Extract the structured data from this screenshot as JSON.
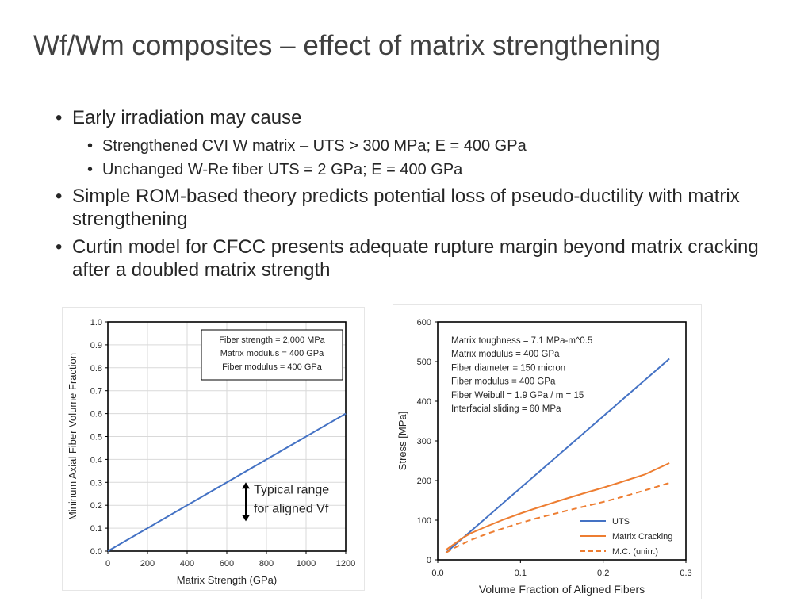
{
  "slide": {
    "title": "Wf/Wm composites – effect of matrix strengthening",
    "bullets": [
      "Early irradiation may cause",
      "Strengthened CVI W matrix – UTS > 300 MPa; E = 400 GPa",
      "Unchanged W-Re fiber UTS = 2 GPa; E = 400 GPa",
      "Simple ROM-based theory predicts potential loss of pseudo-ductility with matrix strengthening",
      "Curtin model for CFCC presents adequate rupture margin beyond matrix cracking after a doubled matrix strength"
    ]
  },
  "chart_data": [
    {
      "type": "line",
      "xlabel": "Matrix Strength (GPa)",
      "ylabel": "Mininum Axial Fiber Volume Fraction",
      "xlim": [
        0,
        1200
      ],
      "ylim": [
        0,
        1.0
      ],
      "xticks": [
        0,
        200,
        400,
        600,
        800,
        1000,
        1200
      ],
      "yticks": [
        0.0,
        0.1,
        0.2,
        0.3,
        0.4,
        0.5,
        0.6,
        0.7,
        0.8,
        0.9,
        1.0
      ],
      "ytick_labels": [
        "0.0",
        "0.1",
        "0.2",
        "0.3",
        "0.4",
        "0.5",
        "0.6",
        "0.7",
        "0.8",
        "0.9",
        "1.0"
      ],
      "grid": true,
      "info_box": [
        "Fiber strength = 2,000 MPa",
        "Matrix modulus = 400 GPa",
        "Fiber modulus = 400 GPa"
      ],
      "annotation": {
        "lines": [
          "Typical range",
          "for aligned Vf"
        ],
        "arrow_x": 700,
        "arrow_range": [
          0.13,
          0.3
        ]
      },
      "series": [
        {
          "color": "#4472c4",
          "x": [
            0,
            1200
          ],
          "y": [
            0.0,
            0.6
          ]
        }
      ]
    },
    {
      "type": "line",
      "xlabel": "Volume Fraction of Aligned Fibers",
      "ylabel": "Stress [MPa]",
      "xlim": [
        0,
        0.3
      ],
      "ylim": [
        0,
        600
      ],
      "xticks": [
        0,
        0.1,
        0.2,
        0.3
      ],
      "xtick_labels": [
        "0.0",
        "0.1",
        "0.2",
        "0.3"
      ],
      "yticks": [
        0,
        100,
        200,
        300,
        400,
        500,
        600
      ],
      "grid": false,
      "info_box": [
        "Matrix toughness = 7.1 MPa-m^0.5",
        "Matrix modulus = 400 GPa",
        "Fiber diameter = 150 micron",
        "Fiber modulus = 400 GPa",
        "Fiber Weibull = 1.9 GPa / m = 15",
        "Interfacial sliding = 60 MPa"
      ],
      "legend_position": "bottom-right",
      "series": [
        {
          "name": "UTS",
          "color": "#4472c4",
          "dash": false,
          "x": [
            0.01,
            0.28
          ],
          "y": [
            18,
            507
          ]
        },
        {
          "name": "Matrix Cracking",
          "color": "#ed7d31",
          "dash": false,
          "x": [
            0.01,
            0.02,
            0.03,
            0.04,
            0.06,
            0.08,
            0.1,
            0.12,
            0.15,
            0.18,
            0.2,
            0.22,
            0.25,
            0.28
          ],
          "y": [
            25,
            40,
            55,
            67,
            85,
            102,
            117,
            131,
            151,
            170,
            182,
            195,
            215,
            244
          ]
        },
        {
          "name": "M.C. (unirr.)",
          "color": "#ed7d31",
          "dash": true,
          "x": [
            0.01,
            0.02,
            0.03,
            0.04,
            0.06,
            0.08,
            0.1,
            0.12,
            0.15,
            0.18,
            0.2,
            0.22,
            0.25,
            0.28
          ],
          "y": [
            18,
            30,
            40,
            50,
            66,
            80,
            93,
            105,
            121,
            136,
            146,
            157,
            175,
            194
          ]
        }
      ]
    }
  ]
}
